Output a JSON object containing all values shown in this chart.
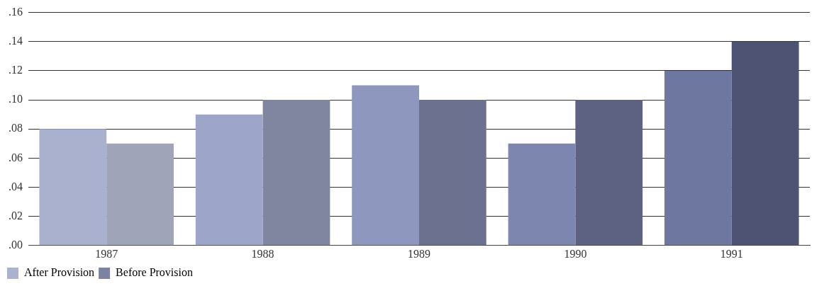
{
  "chart_data": {
    "type": "bar",
    "categories": [
      "1987",
      "1988",
      "1989",
      "1990",
      "1991"
    ],
    "series": [
      {
        "name": "After Provision",
        "color": "#aab2d0",
        "colors": [
          "#a9b1cf",
          "#9da5c8",
          "#8e97bd",
          "#7d86ae",
          "#6e779f"
        ],
        "values": [
          0.08,
          0.09,
          0.11,
          0.07,
          0.12
        ]
      },
      {
        "name": "Before Provision",
        "color": "#7d839f",
        "colors": [
          "#a0a4b9",
          "#80869f",
          "#6c7190",
          "#5d6282",
          "#4e5373"
        ],
        "values": [
          0.07,
          0.1,
          0.1,
          0.1,
          0.14
        ]
      }
    ],
    "ylim": [
      0,
      0.16
    ],
    "yticks": [
      {
        "value": 0,
        "label": ".00"
      },
      {
        "value": 0.02,
        "label": ".02"
      },
      {
        "value": 0.04,
        "label": ".04"
      },
      {
        "value": 0.06,
        "label": ".06"
      },
      {
        "value": 0.08,
        "label": ".08"
      },
      {
        "value": 0.1,
        "label": ".10"
      },
      {
        "value": 0.12,
        "label": ".12"
      },
      {
        "value": 0.14,
        "label": ".14"
      },
      {
        "value": 0.16,
        "label": ".16"
      }
    ],
    "grid": "y",
    "legend": "bottom left"
  }
}
